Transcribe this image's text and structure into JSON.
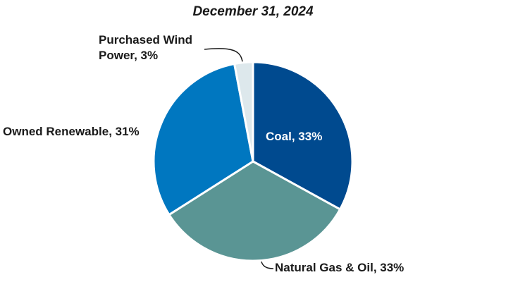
{
  "chart_data": {
    "type": "pie",
    "title": "December 31, 2024",
    "categories": [
      "Coal, 33%",
      "Natural Gas & Oil, 33%",
      "Owned Renewable, 31%",
      "Purchased Wind Power, 3%"
    ],
    "values": [
      33,
      33,
      31,
      3
    ],
    "colors": [
      "#004a8f",
      "#5a9594",
      "#0077c0",
      "#dde8ec"
    ]
  }
}
